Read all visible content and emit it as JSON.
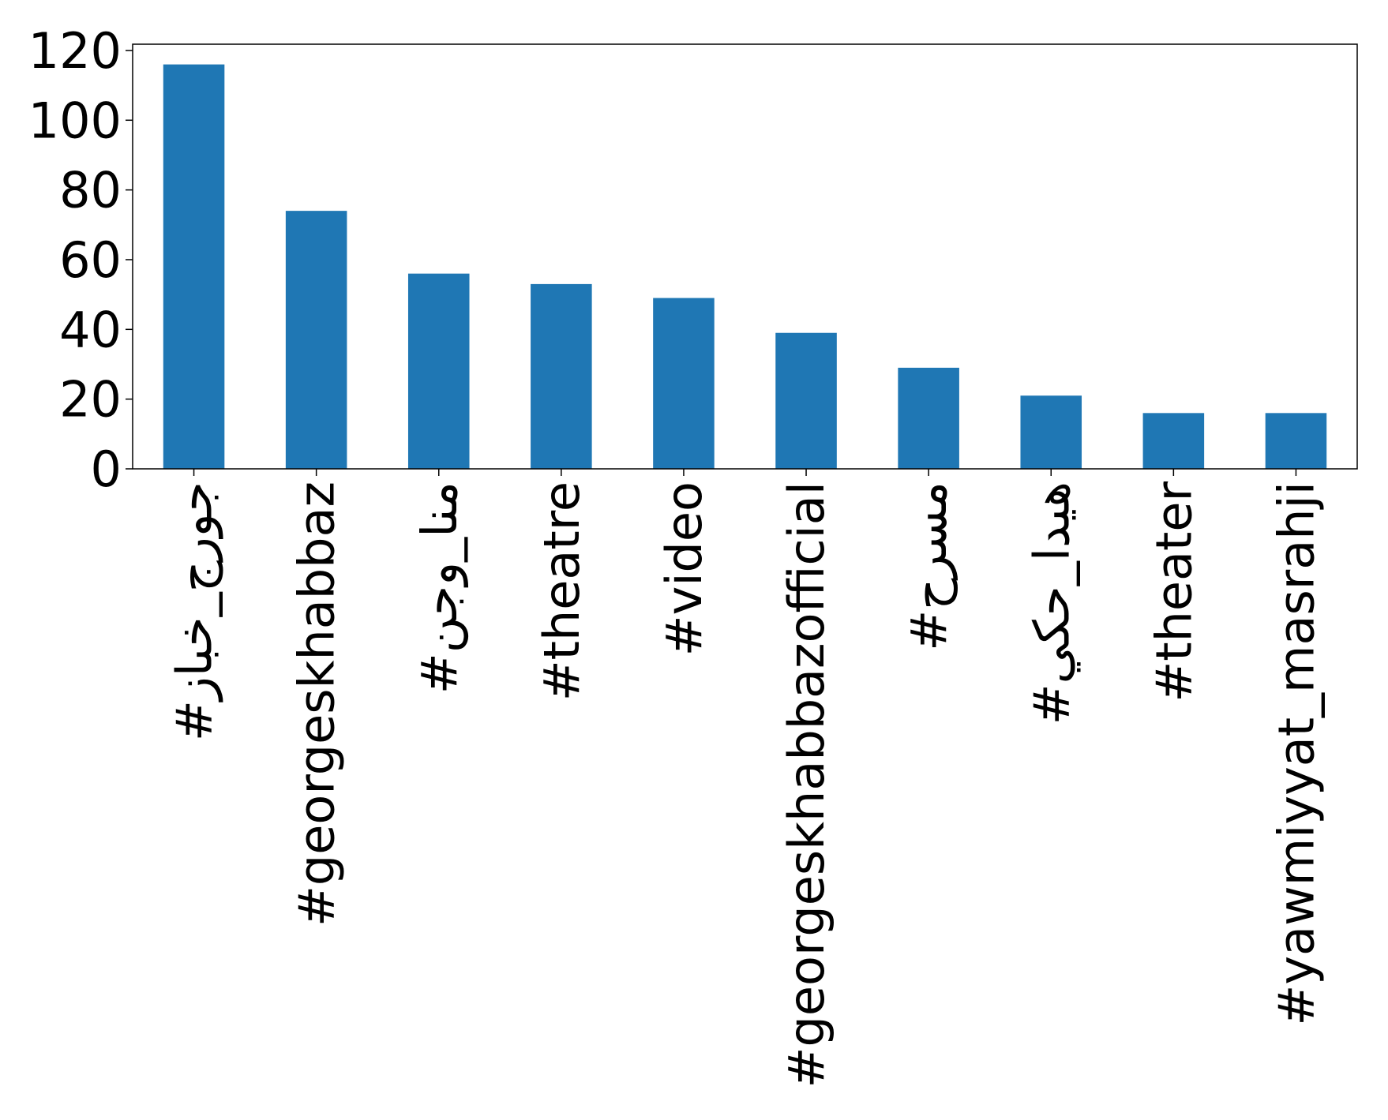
{
  "chart_data": {
    "type": "bar",
    "categories": [
      "#جورج_خباز",
      "#georgeskhabbaz",
      "#منا_وجن",
      "#theatre",
      "#video",
      "#georgeskhabbazofficial",
      "#مسرح",
      "#هيدا_حكي",
      "#theater",
      "#yawmiyyat_masrahji"
    ],
    "values": [
      116,
      74,
      56,
      53,
      49,
      39,
      29,
      21,
      16,
      16
    ],
    "color": "#1f77b4",
    "ylim": [
      0,
      121.8
    ],
    "yticks": [
      0,
      20,
      40,
      60,
      80,
      100,
      120
    ],
    "grid": false
  }
}
